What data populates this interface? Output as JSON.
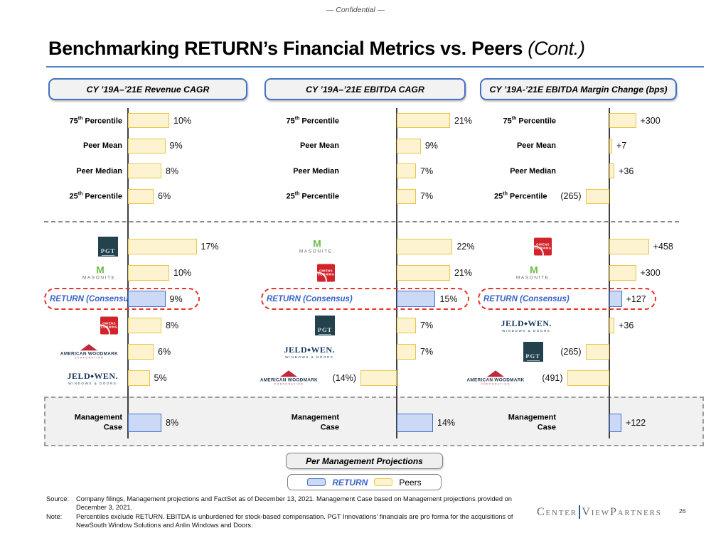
{
  "meta": {
    "confidential": "— Confidential —",
    "title": "Benchmarking RETURN’s Financial Metrics vs. Peers ",
    "title_suffix": "(Cont.)",
    "page_number": "26"
  },
  "branding": {
    "logo_part1": "Center",
    "logo_part2": "View",
    "logo_part3": " Partners"
  },
  "colors": {
    "peer_fill": "#FDF3D1",
    "peer_border": "#E9C646",
    "return_fill": "#CCD9F6",
    "return_border": "#4472C4",
    "return_text": "#3B63C9",
    "highlight_dashed_red": "#E5342B",
    "header_border_blue": "#4472C4",
    "box_gray_fill": "#F2F2F2"
  },
  "logos": {
    "pgt": {
      "text": "PGT"
    },
    "masonite": {
      "mark": "M",
      "text": "MASONITE."
    },
    "owens_corning": {
      "line1": "OWENS",
      "line2": "CORNING"
    },
    "american_woodmark": {
      "text": "AMERICAN WOODMARK",
      "sub": "CORPORATION"
    },
    "jeld_wen": {
      "main1": "JELD",
      "main2": "WEN.",
      "sub": "WINDOWS & DOORS"
    }
  },
  "panels": [
    {
      "header": "CY ’19A–’21E Revenue CAGR",
      "stats": [
        {
          "pre": "75",
          "sup": "th",
          "post": " Percentile",
          "value": 10,
          "display": "10%"
        },
        {
          "pre": "Peer Mean",
          "sup": "",
          "post": "",
          "value": 9,
          "display": "9%"
        },
        {
          "pre": "Peer Median",
          "sup": "",
          "post": "",
          "value": 8,
          "display": "8%"
        },
        {
          "pre": "25",
          "sup": "th",
          "post": " Percentile",
          "value": 6,
          "display": "6%"
        }
      ],
      "companies": [
        {
          "logo": "pgt",
          "name": "PGT Innovations",
          "value": 17,
          "display": "17%"
        },
        {
          "logo": "masonite",
          "name": "Masonite",
          "value": 10,
          "display": "10%"
        },
        {
          "logo": "return",
          "name": "RETURN (Consensus)",
          "label": "RETURN (Consensus)",
          "value": 9,
          "display": "9%",
          "highlight": true
        },
        {
          "logo": "owens_corning",
          "name": "Owens Corning",
          "value": 8,
          "display": "8%"
        },
        {
          "logo": "american_woodmark",
          "name": "American Woodmark",
          "value": 6,
          "display": "6%"
        },
        {
          "logo": "jeld_wen",
          "name": "JELD-WEN",
          "value": 5,
          "display": "5%"
        }
      ],
      "management": {
        "label": "Management Case",
        "value": 8,
        "display": "8%"
      }
    },
    {
      "header": "CY ’19A–’21E EBITDA CAGR",
      "stats": [
        {
          "pre": "75",
          "sup": "th",
          "post": " Percentile",
          "value": 21,
          "display": "21%"
        },
        {
          "pre": "Peer Mean",
          "sup": "",
          "post": "",
          "value": 9,
          "display": "9%"
        },
        {
          "pre": "Peer Median",
          "sup": "",
          "post": "",
          "value": 7,
          "display": "7%"
        },
        {
          "pre": "25",
          "sup": "th",
          "post": " Percentile",
          "value": 7,
          "display": "7%"
        }
      ],
      "companies": [
        {
          "logo": "masonite",
          "name": "Masonite",
          "value": 22,
          "display": "22%"
        },
        {
          "logo": "owens_corning",
          "name": "Owens Corning",
          "value": 21,
          "display": "21%"
        },
        {
          "logo": "return",
          "name": "RETURN (Consensus)",
          "label": "RETURN (Consensus)",
          "value": 15,
          "display": "15%",
          "highlight": true
        },
        {
          "logo": "pgt",
          "name": "PGT Innovations",
          "value": 7,
          "display": "7%"
        },
        {
          "logo": "jeld_wen",
          "name": "JELD-WEN",
          "value": 7,
          "display": "7%"
        },
        {
          "logo": "american_woodmark",
          "name": "American Woodmark",
          "value": -14,
          "display": "(14%)"
        }
      ],
      "management": {
        "label": "Management Case",
        "value": 14,
        "display": "14%"
      }
    },
    {
      "header": "CY ’19A-’21E EBITDA Margin Change (bps)",
      "stats": [
        {
          "pre": "75",
          "sup": "th",
          "post": " Percentile",
          "value": 300,
          "display": "+300"
        },
        {
          "pre": "Peer Mean",
          "sup": "",
          "post": "",
          "value": 7,
          "display": "+7"
        },
        {
          "pre": "Peer Median",
          "sup": "",
          "post": "",
          "value": 36,
          "display": "+36"
        },
        {
          "pre": "25",
          "sup": "th",
          "post": " Percentile",
          "value": -265,
          "display": "(265)"
        }
      ],
      "companies": [
        {
          "logo": "owens_corning",
          "name": "Owens Corning",
          "value": 458,
          "display": "+458"
        },
        {
          "logo": "masonite",
          "name": "Masonite",
          "value": 300,
          "display": "+300"
        },
        {
          "logo": "return",
          "name": "RETURN (Consensus)",
          "label": "RETURN (Consensus)",
          "value": 127,
          "display": "+127",
          "highlight": true
        },
        {
          "logo": "jeld_wen",
          "name": "JELD-WEN",
          "value": 36,
          "display": "+36"
        },
        {
          "logo": "pgt",
          "name": "PGT Innovations",
          "value": -265,
          "display": "(265)"
        },
        {
          "logo": "american_woodmark",
          "name": "American Woodmark",
          "value": -491,
          "display": "(491)"
        }
      ],
      "management": {
        "label": "Management Case",
        "value": 122,
        "display": "+122"
      }
    }
  ],
  "legend": {
    "management_box_label": "Per Management Projections",
    "return_label": "RETURN",
    "peers_label": "Peers"
  },
  "footer": {
    "source_label": "Source:",
    "source_text": "Company filings, Management projections and FactSet as of December 13, 2021. Management Case based on Management projections provided on December 3, 2021.",
    "note_label": "Note:",
    "note_text": "Percentiles exclude RETURN. EBITDA is unburdened for stock-based compensation. PGT Innovations’ financials are pro forma for the acquisitions of NewSouth Window Solutions and Anlin Windows and Doors."
  },
  "chart_data": [
    {
      "type": "bar",
      "orientation": "horizontal",
      "title": "CY '19A–'21E Revenue CAGR",
      "unit": "%",
      "categories": [
        "75th Percentile",
        "Peer Mean",
        "Peer Median",
        "25th Percentile",
        "PGT Innovations",
        "Masonite",
        "RETURN (Consensus)",
        "Owens Corning",
        "American Woodmark",
        "JELD-WEN",
        "Management Case"
      ],
      "values": [
        10,
        9,
        8,
        6,
        17,
        10,
        9,
        8,
        6,
        5,
        8
      ],
      "series_colors": {
        "peers": "#FDF3D1",
        "return": "#CCD9F6"
      }
    },
    {
      "type": "bar",
      "orientation": "horizontal",
      "title": "CY '19A–'21E EBITDA CAGR",
      "unit": "%",
      "categories": [
        "75th Percentile",
        "Peer Mean",
        "Peer Median",
        "25th Percentile",
        "Masonite",
        "Owens Corning",
        "RETURN (Consensus)",
        "PGT Innovations",
        "JELD-WEN",
        "American Woodmark",
        "Management Case"
      ],
      "values": [
        21,
        9,
        7,
        7,
        22,
        21,
        15,
        7,
        7,
        -14,
        14
      ],
      "series_colors": {
        "peers": "#FDF3D1",
        "return": "#CCD9F6"
      }
    },
    {
      "type": "bar",
      "orientation": "horizontal",
      "title": "CY '19A-'21E EBITDA Margin Change (bps)",
      "unit": "bps",
      "categories": [
        "75th Percentile",
        "Peer Mean",
        "Peer Median",
        "25th Percentile",
        "Owens Corning",
        "Masonite",
        "RETURN (Consensus)",
        "JELD-WEN",
        "PGT Innovations",
        "American Woodmark",
        "Management Case"
      ],
      "values": [
        300,
        7,
        36,
        -265,
        458,
        300,
        127,
        36,
        -265,
        -491,
        122
      ],
      "series_colors": {
        "peers": "#FDF3D1",
        "return": "#CCD9F6"
      }
    }
  ]
}
